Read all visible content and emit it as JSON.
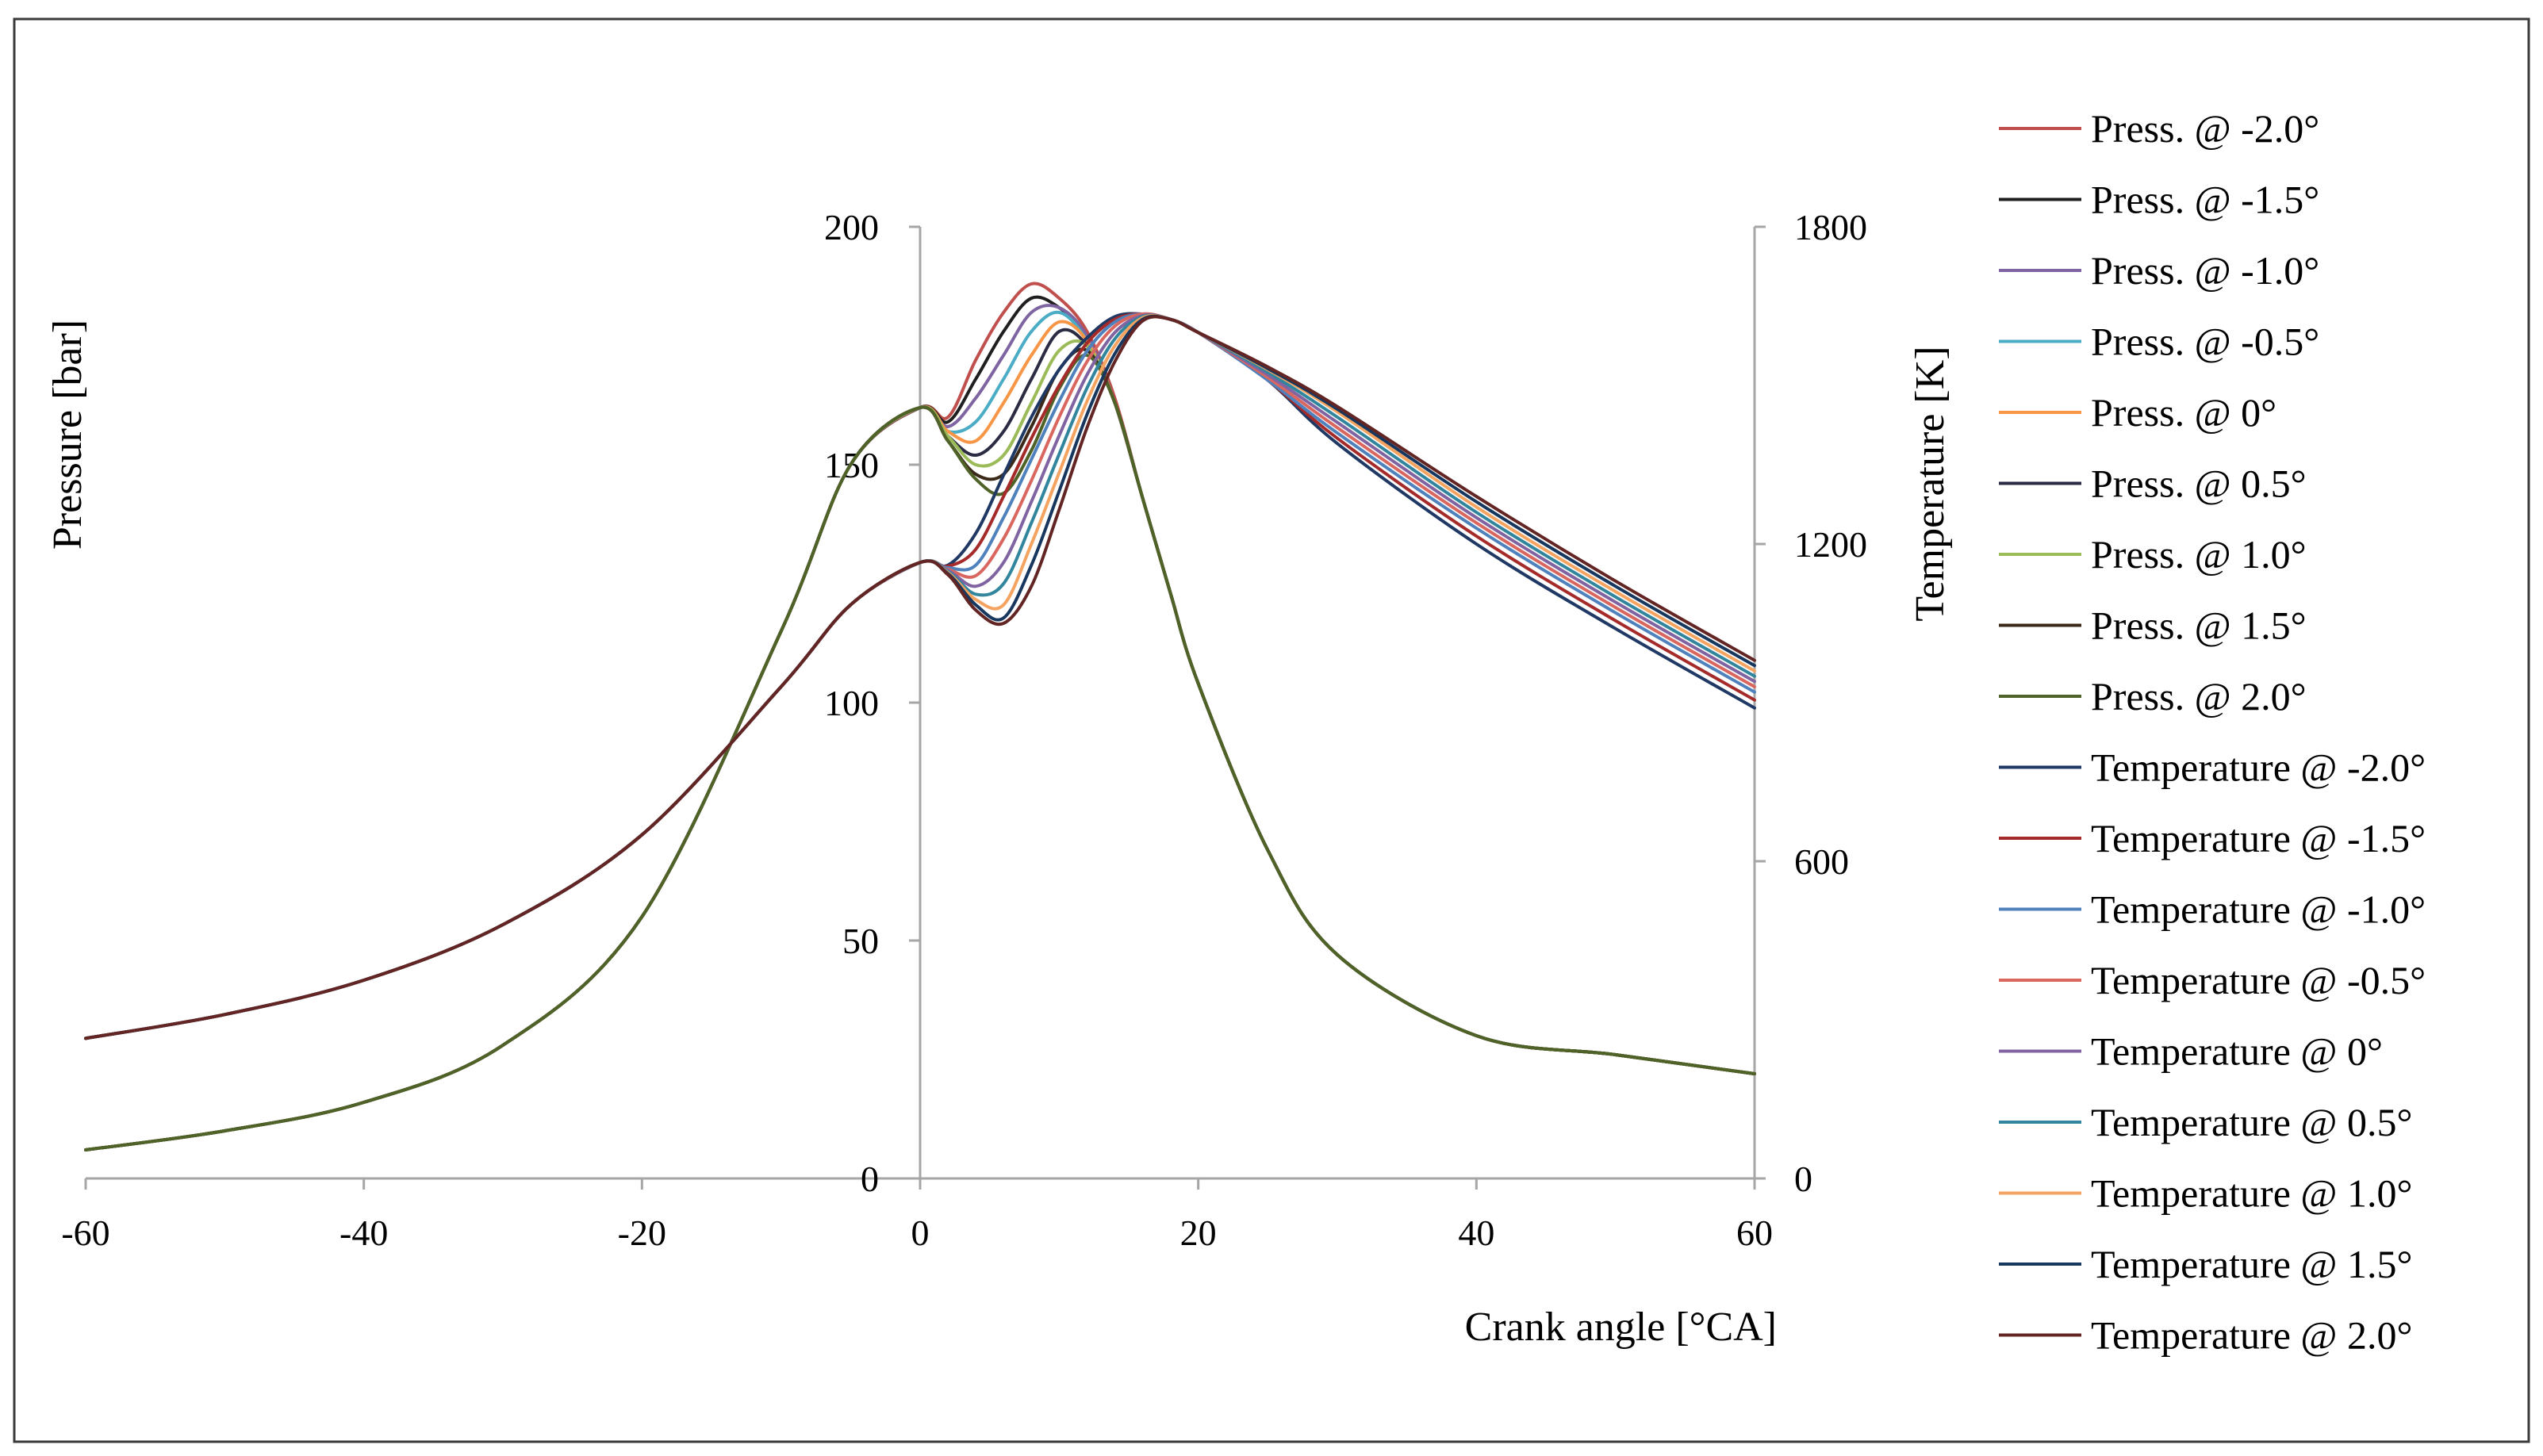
{
  "chart_data": {
    "type": "line",
    "title": "",
    "xlabel": "Crank angle [°CA]",
    "ylabel": "Pressure  [bar]",
    "y2label": "Temperature  [K]",
    "xlim": [
      -60,
      60
    ],
    "ylim": [
      0,
      200
    ],
    "y2lim": [
      0,
      1800
    ],
    "xticks": [
      "-60",
      "-40",
      "-20",
      "0",
      "20",
      "40",
      "60"
    ],
    "yticks": [
      "0",
      "50",
      "100",
      "150",
      "200"
    ],
    "y2ticks": [
      "0",
      "600",
      "1200",
      "1800"
    ],
    "grid": false,
    "legend_position": "right",
    "series": [
      {
        "name": "Press. @ -2.0°",
        "axis": "left",
        "color": "#c0504d",
        "x": [
          -60,
          -50,
          -40,
          -30,
          -20,
          -10,
          -5,
          0,
          2,
          4,
          6,
          8,
          10,
          12,
          14,
          16,
          18,
          20,
          25,
          30,
          40,
          50,
          60
        ],
        "y": [
          6,
          10,
          16,
          28,
          55,
          115,
          150,
          162,
          160,
          172,
          182,
          188,
          185,
          178,
          164,
          143,
          123,
          104,
          69,
          47,
          30,
          26,
          22
        ]
      },
      {
        "name": "Press. @ -1.5°",
        "axis": "left",
        "color": "#1f1f1f",
        "x": [
          -60,
          -50,
          -40,
          -30,
          -20,
          -10,
          -5,
          0,
          2,
          4,
          6,
          8,
          10,
          12,
          14,
          16,
          18,
          20,
          25,
          30,
          40,
          50,
          60
        ],
        "y": [
          6,
          10,
          16,
          28,
          55,
          115,
          150,
          162,
          159,
          168,
          178,
          185,
          183,
          177,
          163,
          143,
          123,
          104,
          69,
          47,
          30,
          26,
          22
        ]
      },
      {
        "name": "Press. @ -1.0°",
        "axis": "left",
        "color": "#7f64a2",
        "x": [
          -60,
          -50,
          -40,
          -30,
          -20,
          -10,
          -5,
          0,
          2,
          4,
          6,
          8,
          10,
          12,
          14,
          16,
          18,
          20,
          25,
          30,
          40,
          50,
          60
        ],
        "y": [
          6,
          10,
          16,
          28,
          55,
          115,
          150,
          162,
          158,
          164,
          173,
          182,
          183,
          177,
          163,
          143,
          123,
          104,
          69,
          47,
          30,
          26,
          22
        ]
      },
      {
        "name": "Press. @ -0.5°",
        "axis": "left",
        "color": "#4bacc6",
        "x": [
          -60,
          -50,
          -40,
          -30,
          -20,
          -10,
          -5,
          0,
          2,
          4,
          6,
          8,
          10,
          12,
          14,
          16,
          18,
          20,
          25,
          30,
          40,
          50,
          60
        ],
        "y": [
          6,
          10,
          16,
          28,
          55,
          115,
          150,
          162,
          157,
          159,
          168,
          178,
          182,
          176,
          163,
          143,
          123,
          104,
          69,
          47,
          30,
          26,
          22
        ]
      },
      {
        "name": "Press. @ 0°",
        "axis": "left",
        "color": "#f79646",
        "x": [
          -60,
          -50,
          -40,
          -30,
          -20,
          -10,
          -5,
          0,
          2,
          4,
          6,
          8,
          10,
          12,
          14,
          16,
          18,
          20,
          25,
          30,
          40,
          50,
          60
        ],
        "y": [
          6,
          10,
          16,
          28,
          55,
          115,
          150,
          162,
          157,
          155,
          163,
          173,
          180,
          176,
          163,
          143,
          123,
          104,
          69,
          47,
          30,
          26,
          22
        ]
      },
      {
        "name": "Press. @ 0.5°",
        "axis": "left",
        "color": "#2b2b44",
        "x": [
          -60,
          -50,
          -40,
          -30,
          -20,
          -10,
          -5,
          0,
          2,
          4,
          6,
          8,
          10,
          12,
          14,
          16,
          18,
          20,
          25,
          30,
          40,
          50,
          60
        ],
        "y": [
          6,
          10,
          16,
          28,
          55,
          115,
          150,
          162,
          156,
          152,
          157,
          168,
          178,
          175,
          163,
          143,
          123,
          104,
          69,
          47,
          30,
          26,
          22
        ]
      },
      {
        "name": "Press. @ 1.0°",
        "axis": "left",
        "color": "#9bbb59",
        "x": [
          -60,
          -50,
          -40,
          -30,
          -20,
          -10,
          -5,
          0,
          2,
          4,
          6,
          8,
          10,
          12,
          14,
          16,
          18,
          20,
          25,
          30,
          40,
          50,
          60
        ],
        "y": [
          6,
          10,
          16,
          28,
          55,
          115,
          150,
          162,
          156,
          150,
          152,
          163,
          174,
          175,
          163,
          143,
          123,
          104,
          69,
          47,
          30,
          26,
          22
        ]
      },
      {
        "name": "Press. @ 1.5°",
        "axis": "left",
        "color": "#3b2a1a",
        "x": [
          -60,
          -50,
          -40,
          -30,
          -20,
          -10,
          -5,
          0,
          2,
          4,
          6,
          8,
          10,
          12,
          14,
          16,
          18,
          20,
          25,
          30,
          40,
          50,
          60
        ],
        "y": [
          6,
          10,
          16,
          28,
          55,
          115,
          150,
          162,
          155,
          148,
          148,
          158,
          170,
          174,
          163,
          143,
          123,
          104,
          69,
          47,
          30,
          26,
          22
        ]
      },
      {
        "name": "Press. @ 2.0°",
        "axis": "left",
        "color": "#4f6228",
        "x": [
          -60,
          -50,
          -40,
          -30,
          -20,
          -10,
          -5,
          0,
          2,
          4,
          6,
          8,
          10,
          12,
          14,
          16,
          18,
          20,
          25,
          30,
          40,
          50,
          60
        ],
        "y": [
          6,
          10,
          16,
          28,
          55,
          115,
          150,
          162,
          155,
          147,
          144,
          153,
          166,
          173,
          163,
          143,
          123,
          104,
          69,
          47,
          30,
          26,
          22
        ]
      },
      {
        "name": "Temperature @ -2.0°",
        "axis": "right",
        "color": "#1f3864",
        "x": [
          -60,
          -50,
          -40,
          -30,
          -20,
          -10,
          -5,
          0,
          2,
          4,
          6,
          8,
          10,
          12,
          14,
          16,
          18,
          20,
          25,
          30,
          40,
          50,
          60
        ],
        "y": [
          265,
          310,
          375,
          480,
          650,
          930,
          1085,
          1165,
          1160,
          1220,
          1330,
          1440,
          1530,
          1590,
          1630,
          1635,
          1625,
          1600,
          1510,
          1390,
          1200,
          1040,
          890
        ]
      },
      {
        "name": "Temperature @ -1.5°",
        "axis": "right",
        "color": "#a52a2a",
        "x": [
          -60,
          -50,
          -40,
          -30,
          -20,
          -10,
          -5,
          0,
          2,
          4,
          6,
          8,
          10,
          12,
          14,
          16,
          18,
          20,
          25,
          30,
          40,
          50,
          60
        ],
        "y": [
          265,
          310,
          375,
          480,
          650,
          930,
          1085,
          1165,
          1158,
          1190,
          1290,
          1400,
          1500,
          1580,
          1625,
          1635,
          1625,
          1600,
          1510,
          1400,
          1215,
          1055,
          905
        ]
      },
      {
        "name": "Temperature @ -1.0°",
        "axis": "right",
        "color": "#4f81bd",
        "x": [
          -60,
          -50,
          -40,
          -30,
          -20,
          -10,
          -5,
          0,
          2,
          4,
          6,
          8,
          10,
          12,
          14,
          16,
          18,
          20,
          25,
          30,
          40,
          50,
          60
        ],
        "y": [
          265,
          310,
          375,
          480,
          650,
          930,
          1085,
          1165,
          1155,
          1160,
          1250,
          1360,
          1470,
          1565,
          1620,
          1635,
          1625,
          1600,
          1510,
          1410,
          1230,
          1070,
          920
        ]
      },
      {
        "name": "Temperature @ -0.5°",
        "axis": "right",
        "color": "#d9675f",
        "x": [
          -60,
          -50,
          -40,
          -30,
          -20,
          -10,
          -5,
          0,
          2,
          4,
          6,
          8,
          10,
          12,
          14,
          16,
          18,
          20,
          25,
          30,
          40,
          50,
          60
        ],
        "y": [
          265,
          310,
          375,
          480,
          650,
          930,
          1085,
          1165,
          1152,
          1140,
          1210,
          1320,
          1440,
          1545,
          1612,
          1635,
          1625,
          1600,
          1515,
          1420,
          1240,
          1080,
          930
        ]
      },
      {
        "name": "Temperature @ 0°",
        "axis": "right",
        "color": "#8064a2",
        "x": [
          -60,
          -50,
          -40,
          -30,
          -20,
          -10,
          -5,
          0,
          2,
          4,
          6,
          8,
          10,
          12,
          14,
          16,
          18,
          20,
          25,
          30,
          40,
          50,
          60
        ],
        "y": [
          265,
          310,
          375,
          480,
          650,
          930,
          1085,
          1165,
          1150,
          1120,
          1165,
          1280,
          1405,
          1520,
          1600,
          1632,
          1625,
          1600,
          1520,
          1430,
          1250,
          1090,
          940
        ]
      },
      {
        "name": "Temperature @ 0.5°",
        "axis": "right",
        "color": "#31859c",
        "x": [
          -60,
          -50,
          -40,
          -30,
          -20,
          -10,
          -5,
          0,
          2,
          4,
          6,
          8,
          10,
          12,
          14,
          16,
          18,
          20,
          25,
          30,
          40,
          50,
          60
        ],
        "y": [
          265,
          310,
          375,
          480,
          650,
          930,
          1085,
          1165,
          1148,
          1105,
          1125,
          1240,
          1370,
          1495,
          1588,
          1630,
          1625,
          1600,
          1525,
          1440,
          1260,
          1100,
          950
        ]
      },
      {
        "name": "Temperature @ 1.0°",
        "axis": "right",
        "color": "#f4a460",
        "x": [
          -60,
          -50,
          -40,
          -30,
          -20,
          -10,
          -5,
          0,
          2,
          4,
          6,
          8,
          10,
          12,
          14,
          16,
          18,
          20,
          25,
          30,
          40,
          50,
          60
        ],
        "y": [
          265,
          310,
          375,
          480,
          650,
          930,
          1085,
          1165,
          1146,
          1095,
          1085,
          1200,
          1335,
          1470,
          1575,
          1628,
          1625,
          1600,
          1530,
          1450,
          1270,
          1110,
          960
        ]
      },
      {
        "name": "Temperature @ 1.5°",
        "axis": "right",
        "color": "#17375e",
        "x": [
          -60,
          -50,
          -40,
          -30,
          -20,
          -10,
          -5,
          0,
          2,
          4,
          6,
          8,
          10,
          12,
          14,
          16,
          18,
          20,
          25,
          30,
          40,
          50,
          60
        ],
        "y": [
          265,
          310,
          375,
          480,
          650,
          930,
          1085,
          1165,
          1144,
          1085,
          1060,
          1160,
          1300,
          1445,
          1560,
          1625,
          1625,
          1600,
          1532,
          1455,
          1280,
          1120,
          970
        ]
      },
      {
        "name": "Temperature @ 2.0°",
        "axis": "right",
        "color": "#632523",
        "x": [
          -60,
          -50,
          -40,
          -30,
          -20,
          -10,
          -5,
          0,
          2,
          4,
          6,
          8,
          10,
          12,
          14,
          16,
          18,
          20,
          25,
          30,
          40,
          50,
          60
        ],
        "y": [
          265,
          310,
          375,
          480,
          650,
          930,
          1085,
          1165,
          1142,
          1075,
          1050,
          1120,
          1265,
          1420,
          1545,
          1622,
          1625,
          1600,
          1535,
          1460,
          1290,
          1130,
          980
        ]
      }
    ]
  }
}
